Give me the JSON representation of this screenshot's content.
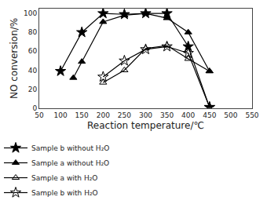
{
  "chart_data": {
    "type": "line",
    "xlabel": "Reaction temperature/℃",
    "ylabel": "NO conversion/%",
    "series": [
      {
        "name": "Sample b without H₂O",
        "color": "black",
        "marker": "star",
        "line_style": "solid",
        "x": [
          100,
          150,
          200,
          250,
          300,
          350,
          400,
          450
        ],
        "values": [
          39,
          80,
          100,
          99,
          100,
          100,
          65,
          1
        ]
      },
      {
        "name": "Sample a without H₂O",
        "color": "black",
        "marker": "triangle-up",
        "line_style": "solid",
        "x": [
          130,
          150,
          200,
          250,
          300,
          350,
          400,
          450
        ],
        "values": [
          32,
          49,
          91,
          98,
          100,
          95,
          80,
          39
        ]
      },
      {
        "name": "Sample a with H₂O",
        "color": "black",
        "marker": "triangle-up-open",
        "line_style": "solid",
        "x": [
          200,
          250,
          300,
          350,
          400,
          450
        ],
        "values": [
          27,
          40,
          63,
          66,
          52,
          39
        ]
      },
      {
        "name": "Sample b with H₂O",
        "color": "black",
        "marker": "star-open",
        "line_style": "solid",
        "x": [
          200,
          250,
          300,
          350,
          400,
          450
        ],
        "values": [
          33,
          50,
          62,
          65,
          58,
          1
        ]
      }
    ],
    "xlim": [
      50,
      550
    ],
    "ylim": [
      0,
      105
    ],
    "xticks": [
      50,
      100,
      150,
      200,
      250,
      300,
      350,
      400,
      450,
      500,
      550
    ],
    "yticks": [
      0,
      20,
      40,
      60,
      80,
      100
    ],
    "grid": false,
    "legend": "bottom"
  }
}
